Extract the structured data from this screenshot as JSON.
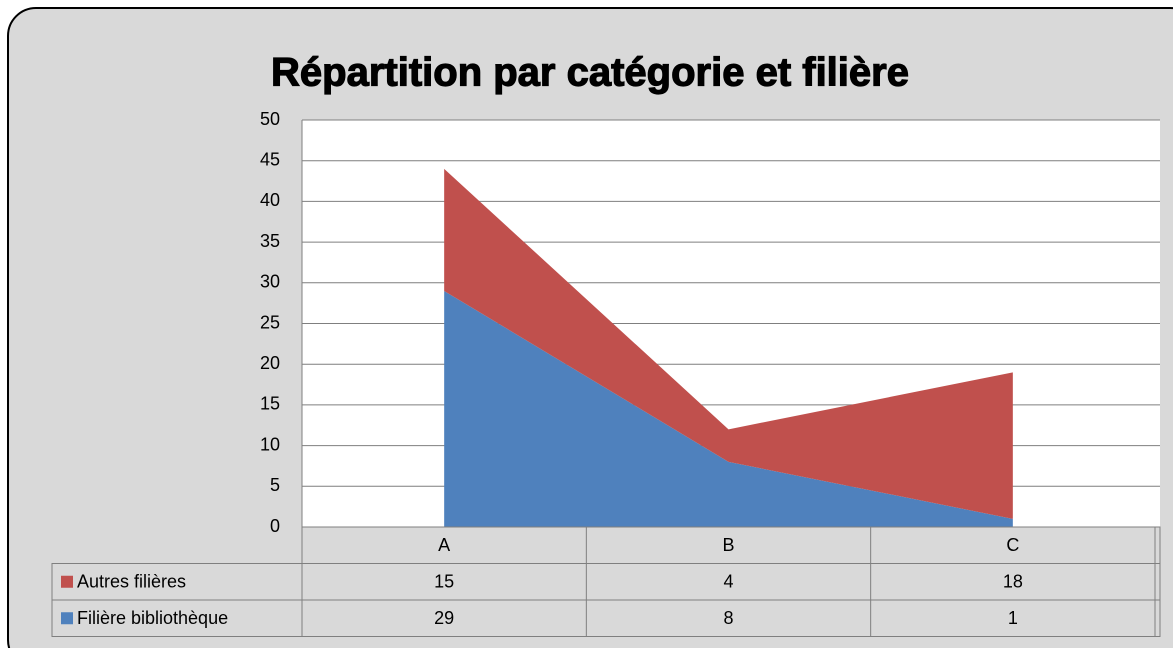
{
  "chart_data": {
    "type": "stacked_area",
    "title": "Répartition par catégorie et filière",
    "categories": [
      "A",
      "B",
      "C"
    ],
    "series": [
      {
        "name": "Autres filières",
        "color": "#c0504d",
        "values": [
          15,
          4,
          18
        ]
      },
      {
        "name": "Filière bibliothèque",
        "color": "#4f81bd",
        "values": [
          29,
          8,
          1
        ]
      }
    ],
    "ylim": [
      0,
      50
    ],
    "yticks": [
      0,
      5,
      10,
      15,
      20,
      25,
      30,
      35,
      40,
      45,
      50
    ],
    "grid": true,
    "data_table": true
  }
}
